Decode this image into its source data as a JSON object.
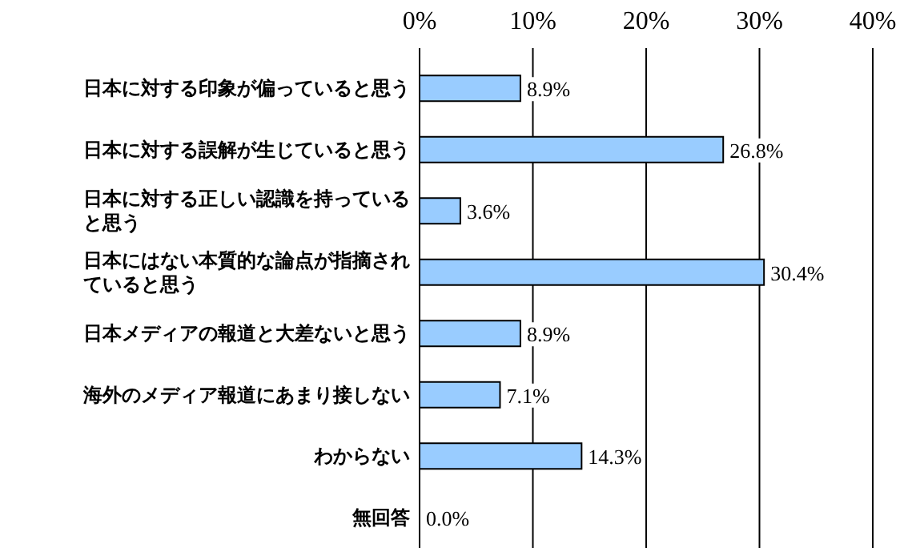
{
  "chart_data": {
    "type": "bar",
    "orientation": "horizontal",
    "categories": [
      "日本に対する印象が偏っていると思う",
      "日本に対する誤解が生じていると思う",
      "日本に対する正しい認識を持っていると思う",
      "日本にはない本質的な論点が指摘されていると思う",
      "日本メディアの報道と大差ないと思う",
      "海外のメディア報道にあまり接しない",
      "わからない",
      "無回答"
    ],
    "values": [
      8.9,
      26.8,
      3.6,
      30.4,
      8.9,
      7.1,
      14.3,
      0.0
    ],
    "value_labels": [
      "8.9%",
      "26.8%",
      "3.6%",
      "30.4%",
      "8.9%",
      "7.1%",
      "14.3%",
      "0.0%"
    ],
    "color": "#99ccff",
    "xlim": [
      0,
      40
    ],
    "xticks": [
      {
        "value": 0,
        "label": "0%"
      },
      {
        "value": 10,
        "label": "10%"
      },
      {
        "value": 20,
        "label": "20%"
      },
      {
        "value": 30,
        "label": "30%"
      },
      {
        "value": 40,
        "label": "40%"
      }
    ],
    "grid": "x"
  }
}
